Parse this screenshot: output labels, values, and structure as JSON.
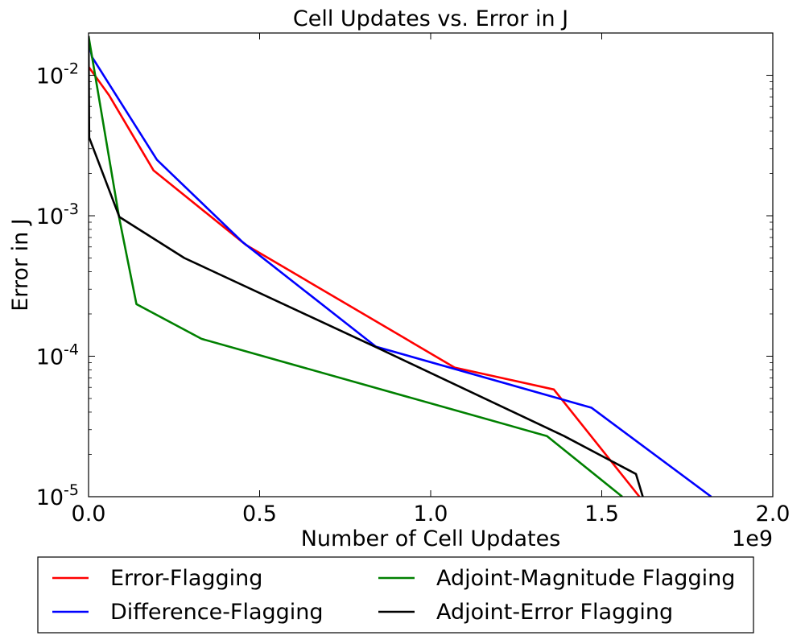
{
  "chart_data": {
    "type": "line",
    "title": "Cell Updates vs. Error in J",
    "xlabel": "Number of Cell Updates",
    "ylabel": "Error in J",
    "x_offset_label": "1e9",
    "xscale": "linear",
    "yscale": "log",
    "xlim": [
      0.0,
      2.0
    ],
    "ylim": [
      1e-05,
      0.02
    ],
    "x_ticks": [
      0.0,
      0.5,
      1.0,
      1.5,
      2.0
    ],
    "x_tick_labels": [
      "0.0",
      "0.5",
      "1.0",
      "1.5",
      "2.0"
    ],
    "y_ticks": [
      {
        "value": 1e-05,
        "base": "10",
        "exp": "-5"
      },
      {
        "value": 0.0001,
        "base": "10",
        "exp": "-4"
      },
      {
        "value": 0.001,
        "base": "10",
        "exp": "-3"
      },
      {
        "value": 0.01,
        "base": "10",
        "exp": "-2"
      }
    ],
    "legend_position": "below",
    "series": [
      {
        "name": "Error-Flagging",
        "color": "#ff0000",
        "points": [
          [
            0.0,
            0.0115
          ],
          [
            0.06,
            0.0072
          ],
          [
            0.19,
            0.0021
          ],
          [
            0.46,
            0.00062
          ],
          [
            1.07,
            8.3e-05
          ],
          [
            1.36,
            5.8e-05
          ],
          [
            1.61,
            1e-05
          ]
        ]
      },
      {
        "name": "Difference-Flagging",
        "color": "#0000ff",
        "points": [
          [
            0.0,
            0.0175
          ],
          [
            0.01,
            0.0135
          ],
          [
            0.2,
            0.0025
          ],
          [
            0.45,
            0.00065
          ],
          [
            0.84,
            0.000117
          ],
          [
            1.47,
            4.3e-05
          ],
          [
            1.82,
            1e-05
          ]
        ]
      },
      {
        "name": "Adjoint-Magnitude Flagging",
        "color": "#008000",
        "points": [
          [
            0.0,
            0.019
          ],
          [
            0.09,
            0.00095
          ],
          [
            0.14,
            0.000235
          ],
          [
            0.33,
            0.000133
          ],
          [
            1.34,
            2.7e-05
          ],
          [
            1.56,
            1e-05
          ]
        ]
      },
      {
        "name": "Adjoint-Error Flagging",
        "color": "#000000",
        "points": [
          [
            0.0,
            0.019
          ],
          [
            0.002,
            0.0036
          ],
          [
            0.09,
            0.00098
          ],
          [
            0.28,
            0.0005
          ],
          [
            0.85,
            0.000113
          ],
          [
            1.39,
            2.7e-05
          ],
          [
            1.6,
            1.45e-05
          ],
          [
            1.62,
            1e-05
          ]
        ]
      }
    ]
  }
}
